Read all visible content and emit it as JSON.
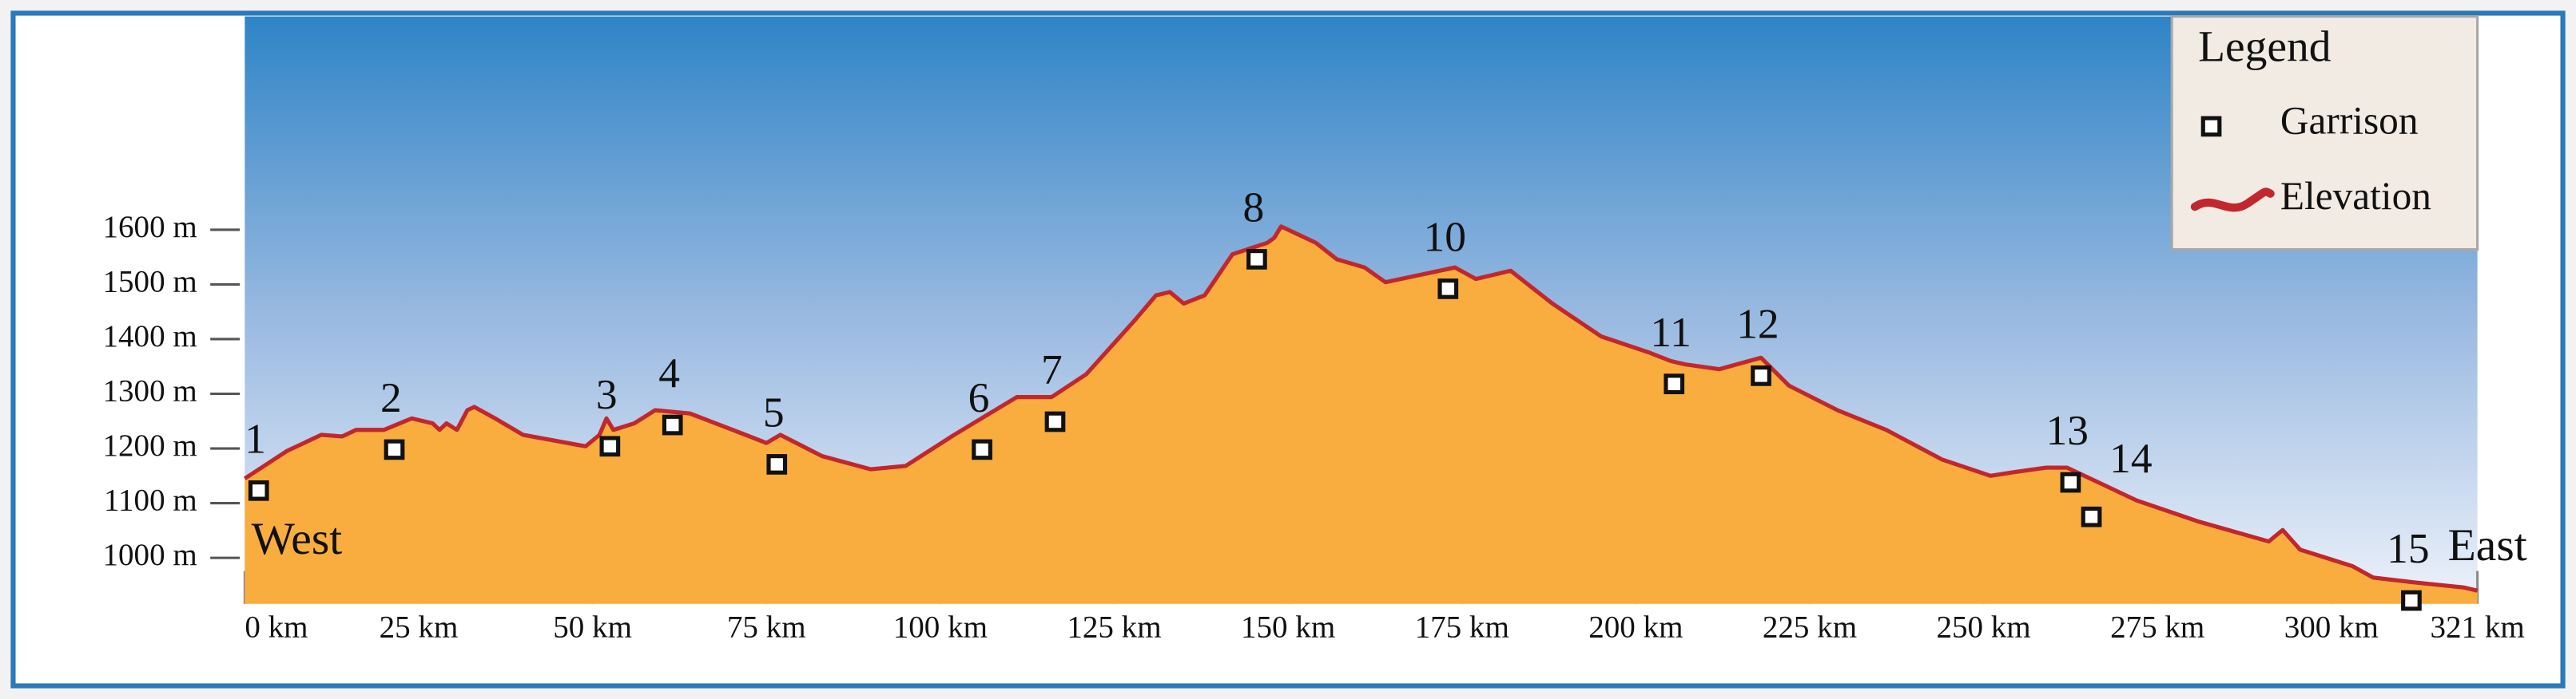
{
  "chart_data": {
    "type": "area",
    "xlim": [
      0,
      321
    ],
    "ylim": [
      916,
      1990
    ],
    "xticks": [
      {
        "value": 0,
        "label": "0 km"
      },
      {
        "value": 25,
        "label": "25 km"
      },
      {
        "value": 50,
        "label": "50 km"
      },
      {
        "value": 75,
        "label": "75 km"
      },
      {
        "value": 100,
        "label": "100 km"
      },
      {
        "value": 125,
        "label": "125 km"
      },
      {
        "value": 150,
        "label": "150 km"
      },
      {
        "value": 175,
        "label": "175 km"
      },
      {
        "value": 200,
        "label": "200 km"
      },
      {
        "value": 225,
        "label": "225 km"
      },
      {
        "value": 250,
        "label": "250 km"
      },
      {
        "value": 275,
        "label": "275 km"
      },
      {
        "value": 300,
        "label": "300 km"
      },
      {
        "value": 321,
        "label": "321 km"
      }
    ],
    "yticks": [
      {
        "value": 1000,
        "label": "1000 m"
      },
      {
        "value": 1100,
        "label": "1100 m"
      },
      {
        "value": 1200,
        "label": "1200 m"
      },
      {
        "value": 1300,
        "label": "1300 m"
      },
      {
        "value": 1400,
        "label": "1400 m"
      },
      {
        "value": 1500,
        "label": "1500 m"
      },
      {
        "value": 1600,
        "label": "1600 m"
      }
    ],
    "annotations": [
      "West",
      "East"
    ],
    "legend": {
      "title": "Legend",
      "position": "top-right"
    },
    "series": [
      {
        "name": "Elevation",
        "type": "area",
        "color": "#c1272d",
        "fill": "#f9ad3f",
        "x": [
          0,
          6,
          11,
          14,
          16,
          20,
          24,
          27,
          28,
          29,
          30.5,
          32,
          33,
          36,
          40,
          49,
          51,
          52,
          53,
          56,
          59,
          64,
          72,
          75,
          77,
          83,
          90,
          95,
          102,
          111,
          116,
          121,
          128,
          131,
          133,
          135,
          138,
          142,
          147,
          148,
          149,
          154,
          157,
          161,
          164,
          174,
          177,
          182,
          188,
          195,
          202,
          205,
          207,
          212,
          218,
          222,
          229,
          236,
          244,
          251,
          254,
          259,
          262,
          267,
          272,
          281,
          291,
          293,
          295.5,
          303,
          306,
          312,
          319,
          321
        ],
        "values": [
          1145,
          1195,
          1225,
          1222,
          1234,
          1234,
          1255,
          1246,
          1234,
          1246,
          1234,
          1270,
          1276,
          1255,
          1225,
          1204,
          1225,
          1255,
          1234,
          1246,
          1270,
          1264,
          1225,
          1210,
          1225,
          1186,
          1162,
          1168,
          1225,
          1294,
          1294,
          1336,
          1435,
          1480,
          1486,
          1465,
          1480,
          1555,
          1576,
          1585,
          1606,
          1576,
          1546,
          1531,
          1504,
          1531,
          1510,
          1525,
          1465,
          1405,
          1375,
          1360,
          1354,
          1345,
          1366,
          1315,
          1270,
          1234,
          1180,
          1150,
          1156,
          1165,
          1165,
          1135,
          1105,
          1066,
          1030,
          1051,
          1015,
          985,
          964,
          955,
          946,
          940
        ]
      },
      {
        "name": "Garrison",
        "type": "scatter",
        "color": "#111111",
        "labels": [
          "1",
          "2",
          "3",
          "4",
          "5",
          "6",
          "7",
          "8",
          "10",
          "11",
          "12",
          "13",
          "14",
          "15"
        ],
        "x": [
          2,
          21.5,
          52.5,
          61.5,
          76.5,
          106,
          116.5,
          145.5,
          173,
          205.5,
          218,
          262.5,
          265.5,
          311.5
        ],
        "values": [
          1123,
          1198,
          1204,
          1243,
          1171,
          1198,
          1249,
          1546,
          1492,
          1318,
          1333,
          1138,
          1075,
          922
        ]
      }
    ]
  }
}
